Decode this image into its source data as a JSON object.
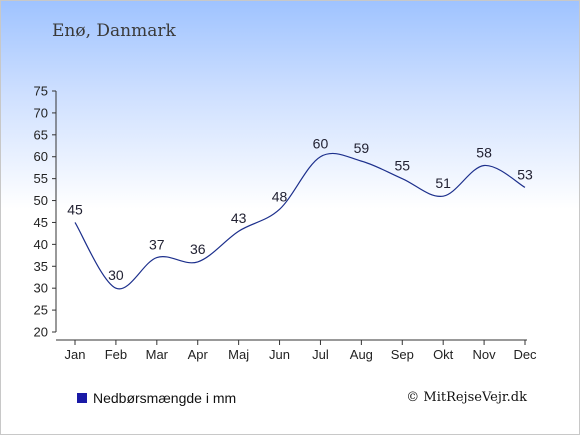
{
  "chart_data": {
    "type": "line",
    "title": "Enø, Danmark",
    "categories": [
      "Jan",
      "Feb",
      "Mar",
      "Apr",
      "Maj",
      "Jun",
      "Jul",
      "Aug",
      "Sep",
      "Okt",
      "Nov",
      "Dec"
    ],
    "series": [
      {
        "name": "Nedbørsmængde i mm",
        "values": [
          45,
          30,
          37,
          36,
          43,
          48,
          60,
          59,
          55,
          51,
          58,
          53
        ]
      }
    ],
    "yticks": [
      20,
      25,
      30,
      35,
      40,
      45,
      50,
      55,
      60,
      65,
      70,
      75
    ],
    "ylim": [
      20,
      75
    ],
    "legend": "bottom-left",
    "grid": false,
    "line_color": "#1c2f8c",
    "legend_color": "#1a1aa6"
  },
  "footer": {
    "credit": "© MitRejseVejr.dk"
  }
}
